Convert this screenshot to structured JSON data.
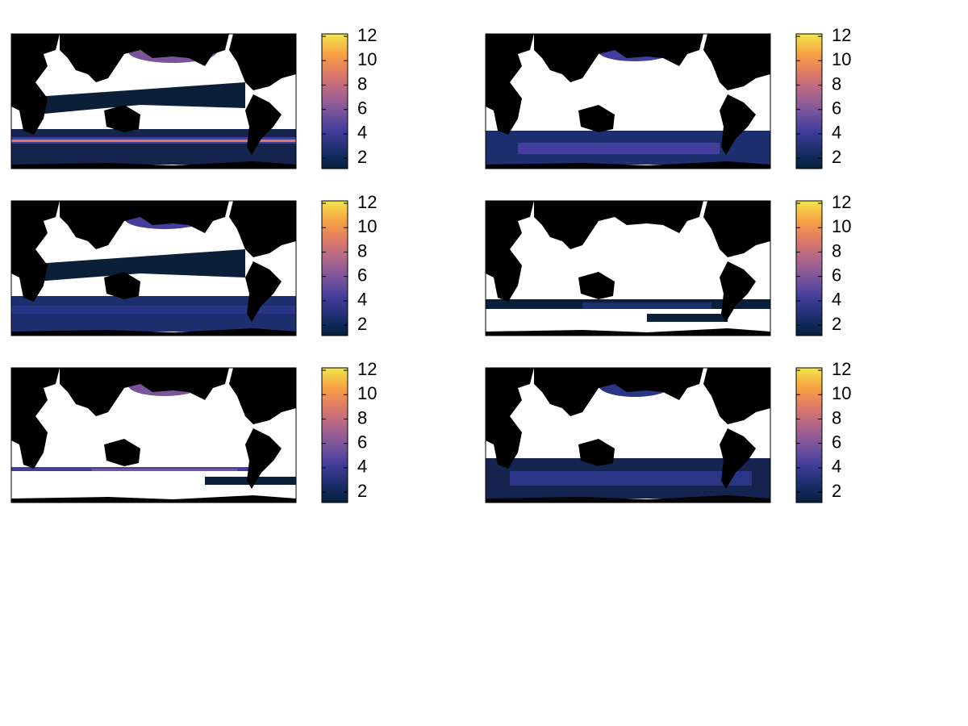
{
  "chart_data": [
    {
      "type": "map",
      "clim": [
        1.15,
        12.2
      ],
      "cticks": [
        2,
        4,
        6,
        8,
        10,
        12
      ],
      "colormap": [
        "#04203a",
        "#1d2f6e",
        "#433d9c",
        "#7a559c",
        "#b1668a",
        "#e07a64",
        "#f8a443",
        "#f0e64c"
      ]
    },
    {
      "type": "map",
      "clim": [
        1.15,
        12.2
      ],
      "cticks": [
        2,
        4,
        6,
        8,
        10,
        12
      ],
      "colormap": [
        "#04203a",
        "#1d2f6e",
        "#433d9c",
        "#7a559c",
        "#b1668a",
        "#e07a64",
        "#f8a443",
        "#f0e64c"
      ]
    },
    {
      "type": "map",
      "clim": [
        1.15,
        12.2
      ],
      "cticks": [
        2,
        4,
        6,
        8,
        10,
        12
      ],
      "colormap": [
        "#04203a",
        "#1d2f6e",
        "#433d9c",
        "#7a559c",
        "#b1668a",
        "#e07a64",
        "#f8a443",
        "#f0e64c"
      ]
    },
    {
      "type": "map",
      "clim": [
        1.15,
        12.2
      ],
      "cticks": [
        2,
        4,
        6,
        8,
        10,
        12
      ],
      "colormap": [
        "#04203a",
        "#1d2f6e",
        "#433d9c",
        "#7a559c",
        "#b1668a",
        "#e07a64",
        "#f8a443",
        "#f0e64c"
      ]
    },
    {
      "type": "map",
      "clim": [
        1.15,
        12.2
      ],
      "cticks": [
        2,
        4,
        6,
        8,
        10,
        12
      ],
      "colormap": [
        "#04203a",
        "#1d2f6e",
        "#433d9c",
        "#7a559c",
        "#b1668a",
        "#e07a64",
        "#f8a443",
        "#f0e64c"
      ]
    },
    {
      "type": "map",
      "clim": [
        1.15,
        12.2
      ],
      "cticks": [
        2,
        4,
        6,
        8,
        10,
        12
      ],
      "colormap": [
        "#04203a",
        "#1d2f6e",
        "#433d9c",
        "#7a559c",
        "#b1668a",
        "#e07a64",
        "#f8a443",
        "#f0e64c"
      ]
    }
  ]
}
